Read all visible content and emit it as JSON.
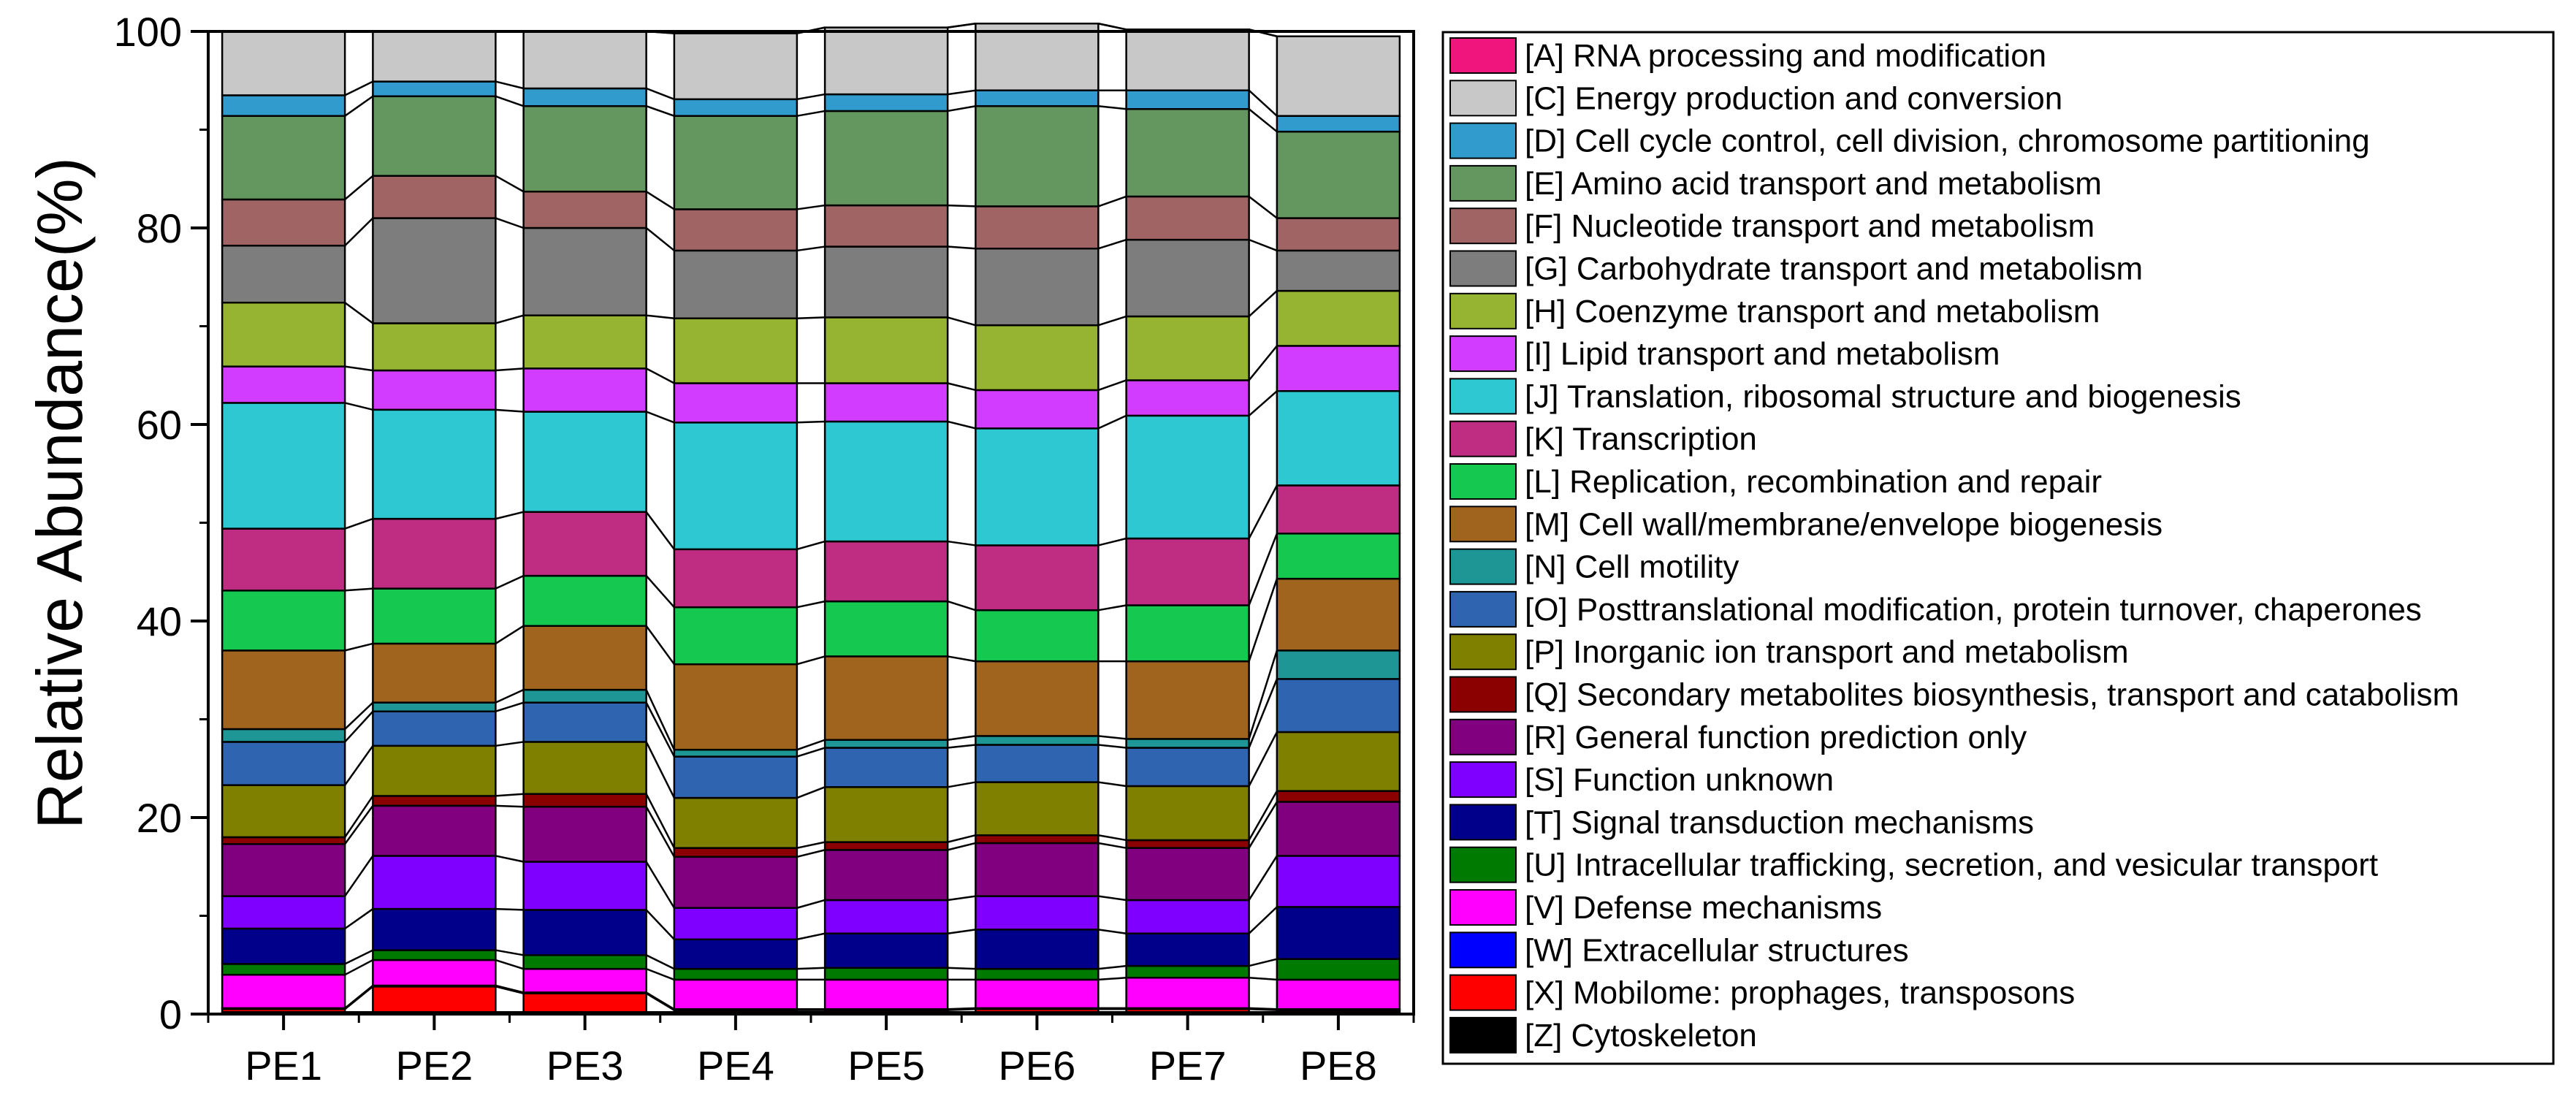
{
  "chart_data": {
    "type": "bar",
    "stacked": true,
    "title": "",
    "xlabel": "",
    "ylabel": "Relative Abundance(%)",
    "ylim": [
      0,
      100
    ],
    "yticks": [
      0,
      20,
      40,
      60,
      80,
      100
    ],
    "grid": false,
    "legend_position": "right",
    "categories": [
      "PE1",
      "PE2",
      "PE3",
      "PE4",
      "PE5",
      "PE6",
      "PE7",
      "PE8"
    ],
    "series": [
      {
        "name": "[Z] Cytoskeleton",
        "color": "#000000",
        "values": [
          0.2,
          0.2,
          0.2,
          0.2,
          0.2,
          0.2,
          0.2,
          0.2
        ]
      },
      {
        "name": "[X] Mobilome: prophages, transposons",
        "color": "#ff0000",
        "values": [
          0.3,
          2.6,
          1.9,
          0.2,
          0.2,
          0.3,
          0.3,
          0.2
        ]
      },
      {
        "name": "[W] Extracellular structures",
        "color": "#0000ff",
        "values": [
          0.1,
          0.1,
          0.1,
          0.1,
          0.1,
          0.1,
          0.1,
          0.1
        ]
      },
      {
        "name": "[V] Defense mechanisms",
        "color": "#ff00ff",
        "values": [
          3.4,
          2.6,
          2.4,
          3.0,
          3.0,
          2.9,
          3.1,
          3.0
        ]
      },
      {
        "name": "[U] Intracellular trafficking, secretion, and vesicular transport",
        "color": "#007a00",
        "values": [
          1.1,
          1.0,
          1.4,
          1.1,
          1.2,
          1.1,
          1.2,
          2.1
        ]
      },
      {
        "name": "[T] Signal transduction mechanisms",
        "color": "#00008b",
        "values": [
          3.6,
          4.2,
          4.6,
          3.0,
          3.5,
          4.0,
          3.3,
          5.3
        ]
      },
      {
        "name": "[S] Function unknown",
        "color": "#8000ff",
        "values": [
          3.3,
          5.4,
          4.9,
          3.2,
          3.4,
          3.4,
          3.4,
          5.2
        ]
      },
      {
        "name": "[R] General function prediction only",
        "color": "#800080",
        "values": [
          5.3,
          5.1,
          5.6,
          5.2,
          5.1,
          5.4,
          5.3,
          5.5
        ]
      },
      {
        "name": "[Q] Secondary metabolites biosynthesis, transport and catabolism",
        "color": "#8b0000",
        "values": [
          0.7,
          1.0,
          1.3,
          0.9,
          0.8,
          0.8,
          0.8,
          1.1
        ]
      },
      {
        "name": "[P] Inorganic ion transport and metabolism",
        "color": "#808000",
        "values": [
          5.3,
          5.1,
          5.3,
          5.1,
          5.6,
          5.4,
          5.5,
          6.0
        ]
      },
      {
        "name": "[O] Posttranslational modification, protein turnover, chaperones",
        "color": "#2e64b0",
        "values": [
          4.4,
          3.5,
          4.0,
          4.2,
          4.0,
          3.8,
          3.9,
          5.4
        ]
      },
      {
        "name": "[N] Cell motility",
        "color": "#1e9696",
        "values": [
          1.3,
          0.9,
          1.3,
          0.7,
          0.8,
          0.9,
          0.9,
          2.9
        ]
      },
      {
        "name": "[M] Cell wall/membrane/envelope biogenesis",
        "color": "#a0641e",
        "values": [
          8.0,
          6.0,
          6.5,
          8.7,
          8.5,
          7.6,
          7.9,
          7.3
        ]
      },
      {
        "name": "[L] Replication, recombination and repair",
        "color": "#14c850",
        "values": [
          6.1,
          5.6,
          5.1,
          5.8,
          5.6,
          5.2,
          5.7,
          4.6
        ]
      },
      {
        "name": "[K] Transcription",
        "color": "#be2d82",
        "values": [
          6.3,
          7.1,
          6.5,
          5.9,
          6.1,
          6.6,
          6.8,
          4.9
        ]
      },
      {
        "name": "[J] Translation, ribosomal structure and biogenesis",
        "color": "#2dc8d2",
        "values": [
          12.8,
          11.1,
          10.2,
          12.9,
          12.2,
          11.9,
          12.5,
          9.6
        ]
      },
      {
        "name": "[I] Lipid transport and metabolism",
        "color": "#d23cff",
        "values": [
          3.7,
          4.0,
          4.4,
          4.0,
          3.9,
          3.9,
          3.6,
          4.6
        ]
      },
      {
        "name": "[H] Coenzyme transport and metabolism",
        "color": "#96b432",
        "values": [
          6.5,
          4.8,
          5.4,
          6.6,
          6.7,
          6.6,
          6.5,
          5.6
        ]
      },
      {
        "name": "[G] Carbohydrate transport and metabolism",
        "color": "#7d7d7d",
        "values": [
          5.8,
          10.7,
          8.9,
          6.9,
          7.2,
          7.8,
          7.8,
          4.1
        ]
      },
      {
        "name": "[F] Nucleotide transport and metabolism",
        "color": "#a06464",
        "values": [
          4.7,
          4.3,
          3.7,
          4.2,
          4.2,
          4.3,
          4.4,
          3.3
        ]
      },
      {
        "name": "[E] Amino acid transport and metabolism",
        "color": "#64965f",
        "values": [
          8.5,
          8.1,
          8.7,
          9.5,
          9.6,
          10.2,
          8.9,
          8.8
        ]
      },
      {
        "name": "[D] Cell cycle control, cell division, chromosome partitioning",
        "color": "#329bcd",
        "values": [
          2.1,
          1.5,
          1.8,
          1.7,
          1.7,
          1.6,
          1.9,
          1.6
        ]
      },
      {
        "name": "[C] Energy production and conversion",
        "color": "#c8c8c8",
        "values": [
          6.5,
          5.1,
          5.8,
          6.7,
          6.8,
          6.8,
          6.2,
          8.1
        ]
      },
      {
        "name": "[A] RNA processing and modification",
        "color": "#f0147d",
        "values": [
          0,
          0,
          0,
          0,
          0,
          0,
          0,
          0
        ]
      }
    ]
  }
}
